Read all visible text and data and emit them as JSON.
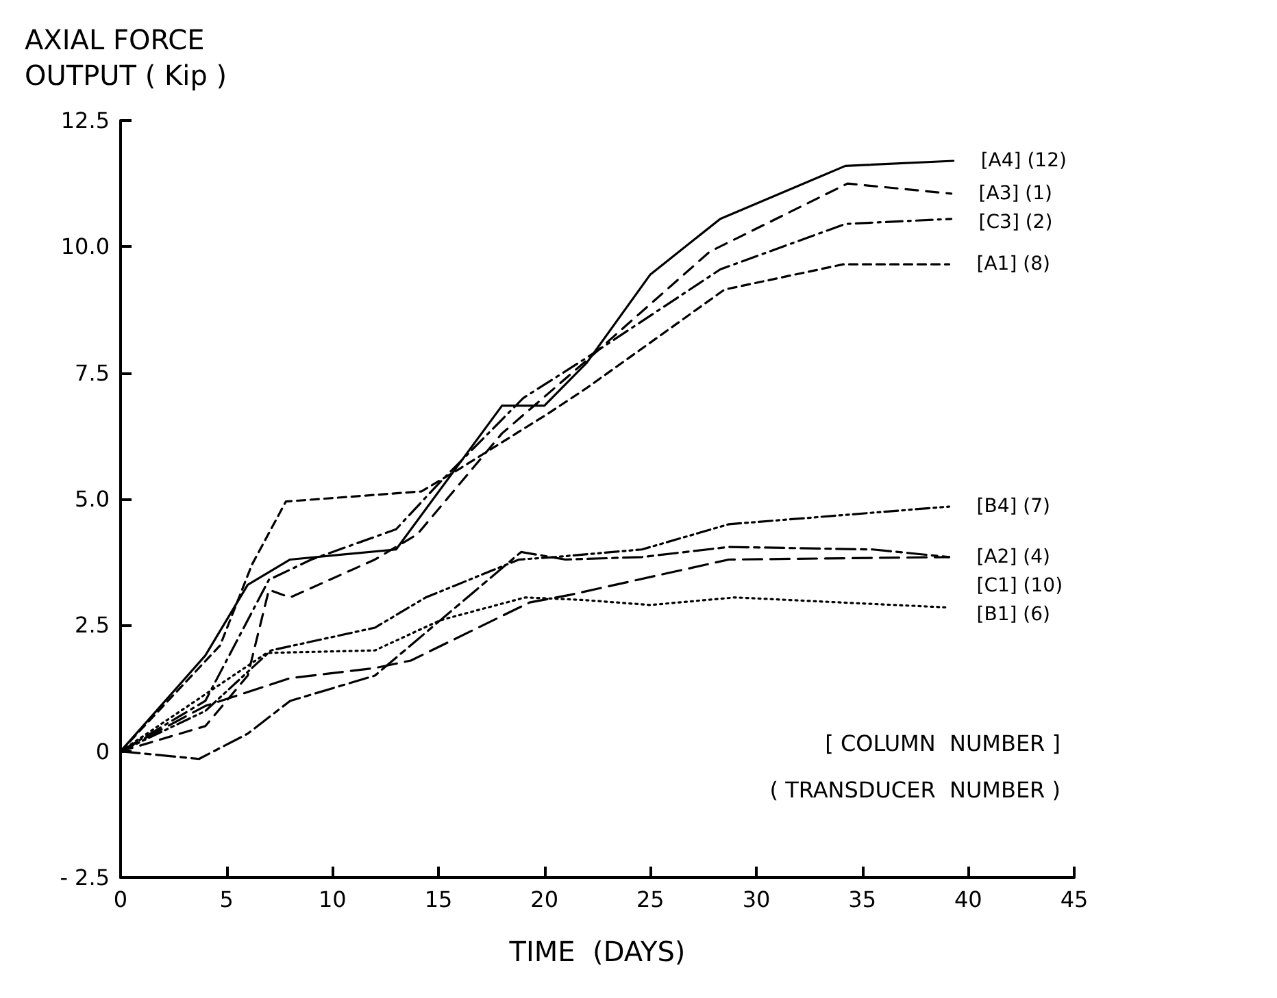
{
  "chart_data": {
    "type": "line",
    "xlabel": "TIME  (DAYS)",
    "ylabel": "AXIAL FORCE\nOUTPUT ( Kip )",
    "xlim": [
      0,
      45
    ],
    "xticks": [
      0,
      5,
      10,
      15,
      20,
      25,
      30,
      35,
      40,
      45
    ],
    "ylim": [
      -2.5,
      12.5
    ],
    "yticks": [
      {
        "value": -2.5,
        "label": "- 2.5"
      },
      0,
      2.5,
      {
        "value": 5,
        "label": "5.0"
      },
      7.5,
      {
        "value": 10,
        "label": "10.0"
      },
      12.5
    ],
    "grid": false,
    "legend": false,
    "marker": "none",
    "annotations": [
      "[ COLUMN  NUMBER ]",
      "( TRANSDUCER  NUMBER )"
    ],
    "series": [
      {
        "name": "[A4] (12)",
        "color": "#000000",
        "line_style": "solid",
        "x": [
          0,
          4,
          6,
          8,
          13,
          18,
          20,
          22,
          25,
          28.3,
          34.2,
          39.3
        ],
        "values": [
          0,
          1.9,
          3.3,
          3.8,
          4.0,
          6.85,
          6.85,
          7.7,
          9.45,
          10.55,
          11.6,
          11.7
        ]
      },
      {
        "name": "[A3] (1)",
        "color": "#000000",
        "line_style": "dashed",
        "x": [
          0,
          4,
          6,
          7,
          8,
          12,
          14,
          18,
          22,
          27.8,
          34.3,
          39.2
        ],
        "values": [
          0,
          0.5,
          1.5,
          3.2,
          3.05,
          3.8,
          4.3,
          6.3,
          7.75,
          9.9,
          11.25,
          11.05
        ]
      },
      {
        "name": "[C3] (2)",
        "color": "#000000",
        "line_style": "dashed",
        "x": [
          0,
          4,
          7,
          9,
          13,
          15,
          19,
          22,
          28.3,
          34.2,
          39.2
        ],
        "values": [
          0,
          1.0,
          3.4,
          3.8,
          4.4,
          5.3,
          7.0,
          7.8,
          9.55,
          10.45,
          10.55
        ]
      },
      {
        "name": "[A1] (8)",
        "color": "#000000",
        "line_style": "dashed",
        "x": [
          0,
          4.7,
          6.2,
          7.8,
          14.2,
          16,
          20.2,
          22,
          28.5,
          34.1,
          39.1
        ],
        "values": [
          0,
          2.1,
          3.7,
          4.95,
          5.15,
          5.6,
          6.7,
          7.2,
          9.15,
          9.65,
          9.65
        ]
      },
      {
        "name": "[B4] (7)",
        "color": "#000000",
        "line_style": "dashed",
        "x": [
          0,
          4,
          7.1,
          12,
          14.4,
          18.8,
          20.5,
          24.6,
          28.7,
          39.1
        ],
        "values": [
          0,
          0.8,
          2.0,
          2.45,
          3.05,
          3.8,
          3.85,
          4.0,
          4.5,
          4.85
        ]
      },
      {
        "name": "[A2] (4)",
        "color": "#000000",
        "line_style": "dashed",
        "x": [
          0,
          3.7,
          6,
          8,
          12,
          18.9,
          21,
          24.6,
          28.7,
          35.5,
          39.1
        ],
        "values": [
          0,
          -0.15,
          0.35,
          1.0,
          1.5,
          3.95,
          3.8,
          3.85,
          4.05,
          4.0,
          3.85
        ]
      },
      {
        "name": "[C1] (10)",
        "color": "#000000",
        "line_style": "dashed",
        "x": [
          0,
          4,
          8,
          12,
          13.7,
          19.3,
          21.2,
          28.7,
          39.1
        ],
        "values": [
          0,
          0.9,
          1.45,
          1.65,
          1.8,
          2.95,
          3.1,
          3.8,
          3.85
        ]
      },
      {
        "name": "[B1] (6)",
        "color": "#000000",
        "line_style": "dotted",
        "x": [
          0,
          4.6,
          6.9,
          12,
          15.1,
          19.1,
          21.8,
          25,
          29,
          34,
          39.1
        ],
        "values": [
          0,
          1.3,
          1.95,
          2.0,
          2.6,
          3.05,
          3.0,
          2.9,
          3.05,
          2.95,
          2.85
        ]
      }
    ]
  }
}
